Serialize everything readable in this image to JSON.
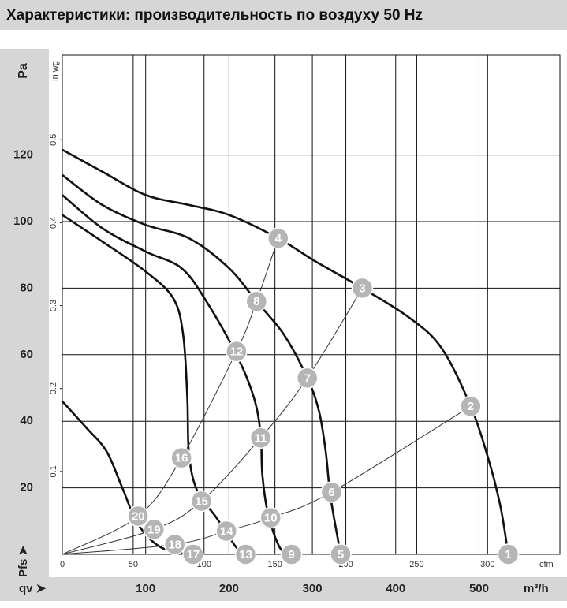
{
  "chart_data": {
    "type": "fan-curve",
    "title": "Характеристики: производительность по воздуху 50 Hz",
    "y_label": "Pa",
    "y_label_bottom": "Pfs ➤",
    "x_label_left": "qv ➤",
    "x_label": "m³/h",
    "y2_label": "in wg",
    "x2_label": "cfm",
    "xlim": [
      0,
      597
    ],
    "xticks": [
      100,
      200,
      300,
      400,
      500
    ],
    "ylim": [
      0,
      150
    ],
    "yticks": [
      20,
      40,
      60,
      80,
      100,
      120
    ],
    "y2lim": [
      0,
      0.602
    ],
    "y2ticks": [
      0.1,
      0.2,
      0.3,
      0.4,
      0.5
    ],
    "x2lim": [
      0,
      351
    ],
    "x2ticks": [
      0,
      50,
      100,
      150,
      200,
      250,
      300
    ],
    "grid": true,
    "series": [
      {
        "kind": "fan",
        "color": "#111111",
        "x": [
          0,
          48,
          100,
          152,
          200,
          259,
          304,
          360,
          417,
          455,
          490,
          512,
          526,
          535
        ],
        "values": [
          121.6,
          115,
          108,
          105,
          102,
          95,
          88,
          80,
          71,
          62,
          44.5,
          28,
          14,
          0
        ]
      },
      {
        "kind": "fan",
        "color": "#111111",
        "x": [
          0,
          48,
          100,
          152,
          200,
          233,
          266,
          294,
          308,
          316,
          322,
          334
        ],
        "values": [
          114,
          105,
          99,
          95,
          86,
          76,
          66,
          53,
          43,
          31,
          17,
          0
        ]
      },
      {
        "kind": "fan",
        "color": "#111111",
        "x": [
          0,
          48,
          100,
          143,
          173,
          209,
          230,
          238,
          240,
          247,
          261,
          275
        ],
        "values": [
          108,
          98,
          91,
          86,
          76,
          60,
          47,
          36,
          24,
          12,
          2,
          0
        ]
      },
      {
        "kind": "fan",
        "color": "#111111",
        "x": [
          0,
          48,
          100,
          133,
          145,
          150,
          152,
          162,
          185,
          209,
          220
        ],
        "values": [
          102,
          94,
          85,
          77,
          66,
          47,
          30,
          19,
          11,
          2,
          0
        ]
      },
      {
        "kind": "fan",
        "color": "#111111",
        "x": [
          0,
          29,
          53,
          72,
          91,
          119,
          157
        ],
        "values": [
          46,
          38,
          31,
          20,
          9,
          2,
          0
        ]
      },
      {
        "kind": "system",
        "color": "#333333",
        "x": [
          0,
          135,
          197,
          250,
          323,
          490
        ],
        "values": [
          0,
          3,
          7,
          11,
          18.7,
          44.5
        ]
      },
      {
        "kind": "system",
        "color": "#333333",
        "x": [
          0,
          110,
          167,
          238,
          294,
          360
        ],
        "values": [
          0,
          7.5,
          16,
          35,
          53,
          80
        ]
      },
      {
        "kind": "system",
        "color": "#333333",
        "x": [
          0,
          91,
          143,
          209,
          233,
          259
        ],
        "values": [
          0,
          11.5,
          29,
          61,
          76,
          95
        ]
      }
    ],
    "points": [
      {
        "label": "1",
        "x": 535,
        "y": 0
      },
      {
        "label": "2",
        "x": 490,
        "y": 44.5
      },
      {
        "label": "3",
        "x": 360,
        "y": 80
      },
      {
        "label": "4",
        "x": 259,
        "y": 95
      },
      {
        "label": "5",
        "x": 334,
        "y": 0
      },
      {
        "label": "6",
        "x": 323,
        "y": 18.7
      },
      {
        "label": "7",
        "x": 294,
        "y": 53
      },
      {
        "label": "8",
        "x": 233,
        "y": 76
      },
      {
        "label": "9",
        "x": 275,
        "y": 0
      },
      {
        "label": "10",
        "x": 250,
        "y": 11
      },
      {
        "label": "11",
        "x": 238,
        "y": 35
      },
      {
        "label": "12",
        "x": 209,
        "y": 61
      },
      {
        "label": "13",
        "x": 220,
        "y": 0
      },
      {
        "label": "14",
        "x": 197,
        "y": 7
      },
      {
        "label": "15",
        "x": 167,
        "y": 16
      },
      {
        "label": "16",
        "x": 143,
        "y": 29
      },
      {
        "label": "17",
        "x": 157,
        "y": 0
      },
      {
        "label": "18",
        "x": 135,
        "y": 3
      },
      {
        "label": "19",
        "x": 110,
        "y": 7.5
      },
      {
        "label": "20",
        "x": 91,
        "y": 11.5
      }
    ]
  }
}
